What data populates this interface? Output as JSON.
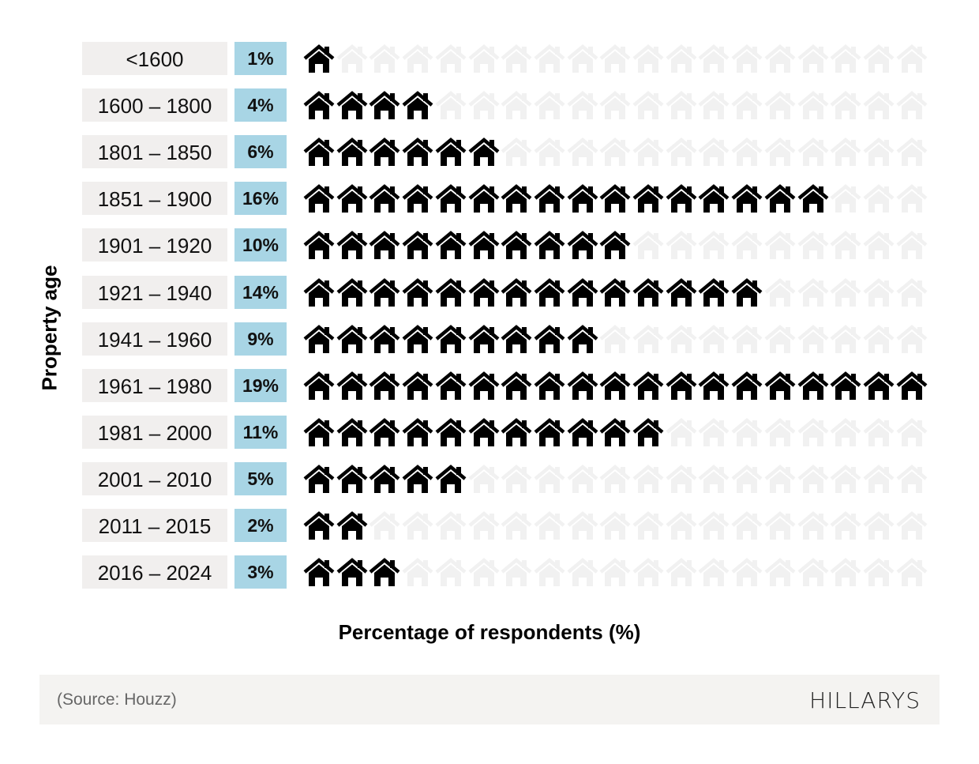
{
  "chart_data": {
    "type": "pictogram",
    "ylabel": "Property age",
    "xlabel": "Percentage of respondents (%)",
    "icon": "house-icon",
    "icon_total_per_row": 19,
    "units_per_icon": 1,
    "categories": [
      "<1600",
      "1600 – 1800",
      "1801 – 1850",
      "1851 – 1900",
      "1901 – 1920",
      "1921 – 1940",
      "1941 – 1960",
      "1961 – 1980",
      "1981 – 2000",
      "2001 – 2010",
      "2011 – 2015",
      "2016 – 2024"
    ],
    "values": [
      1,
      4,
      6,
      16,
      10,
      14,
      9,
      19,
      11,
      5,
      2,
      3
    ],
    "value_labels": [
      "1%",
      "4%",
      "6%",
      "16%",
      "10%",
      "14%",
      "9%",
      "19%",
      "11%",
      "5%",
      "2%",
      "3%"
    ],
    "colors": {
      "filled": "#000000",
      "empty": "#f1f1f1",
      "percent_box": "#a8d5e5",
      "label_box": "#f1efee"
    }
  },
  "footer": {
    "source": "(Source: Houzz)",
    "logo": "HILLARYS"
  }
}
